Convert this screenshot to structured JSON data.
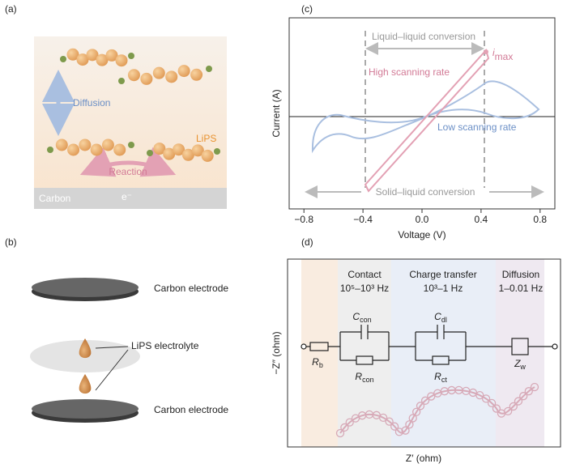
{
  "panels": {
    "a": {
      "label": "(a)",
      "diffusion": "Diffusion",
      "lips": "LiPS",
      "reaction": "Reaction",
      "carbon": "Carbon",
      "electron": "e⁻"
    },
    "b": {
      "label": "(b)",
      "top_electrode": "Carbon electrode",
      "electrolyte": "LiPS electrolyte",
      "bottom_electrode": "Carbon electrode"
    },
    "c": {
      "label": "(c)",
      "xlabel": "Voltage (V)",
      "ylabel": "Current (A)",
      "xlim": [
        -0.9,
        0.9
      ],
      "xticks": [
        {
          "value": -0.8,
          "label": "−0.8"
        },
        {
          "value": -0.4,
          "label": "−0.4"
        },
        {
          "value": 0,
          "label": "0.0"
        },
        0.4,
        0.8
      ],
      "liquid_liquid": "Liquid–liquid conversion",
      "solid_liquid": "Solid–liquid conversion",
      "high_rate": "High scanning rate",
      "low_rate": "Low scanning rate",
      "imax": {
        "main": "i",
        "sub": "max"
      }
    },
    "d": {
      "label": "(d)",
      "xlabel": "Z′ (ohm)",
      "ylabel": "−Z″ (ohm)",
      "regions": [
        {
          "title": "Contact",
          "freq": "10⁵–10³ Hz"
        },
        {
          "title": "Charge transfer",
          "freq": "10³–1 Hz"
        },
        {
          "title": "Diffusion",
          "freq": "1–0.01 Hz"
        }
      ],
      "elements": {
        "rb": {
          "main": "R",
          "sub": "b"
        },
        "ccon": {
          "main": "C",
          "sub": "con"
        },
        "rcon": {
          "main": "R",
          "sub": "con"
        },
        "cdl": {
          "main": "C",
          "sub": "dl"
        },
        "rct": {
          "main": "R",
          "sub": "ct"
        },
        "zw": {
          "main": "Z",
          "sub": "w"
        }
      }
    }
  }
}
